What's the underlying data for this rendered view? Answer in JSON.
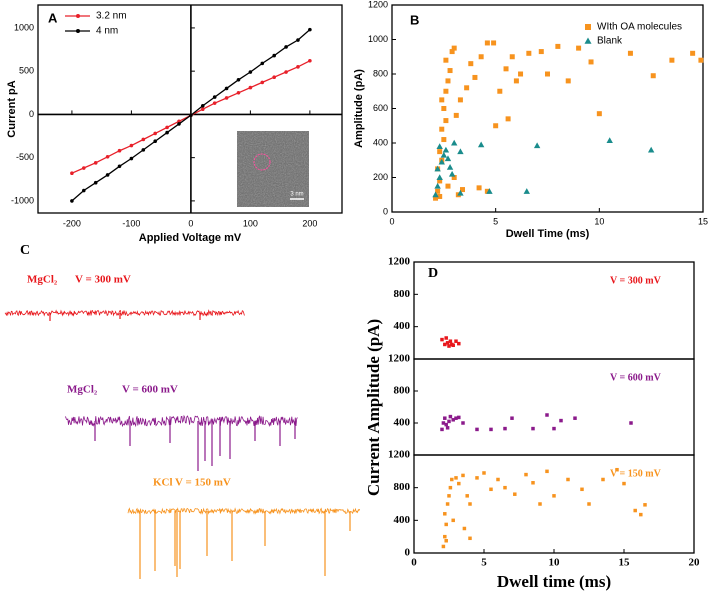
{
  "chart_data": [
    {
      "type": "line",
      "label": "A",
      "x_label": "Applied Voltage mV",
      "y_label": "Current pA",
      "inset_label": "3 nm",
      "xlim": [
        -257,
        254
      ],
      "ylim": [
        -1140,
        1265
      ],
      "xticks": [
        -200,
        -100,
        0,
        100,
        200
      ],
      "yticks": [
        -1000,
        -500,
        0,
        500,
        1000
      ],
      "legend": "upper left",
      "series": [
        {
          "name": "3.2 nm",
          "color": "#e8202a",
          "x": [
            -200,
            -180,
            -160,
            -140,
            -120,
            -100,
            -80,
            -60,
            -40,
            -20,
            0,
            20,
            40,
            60,
            80,
            100,
            120,
            140,
            160,
            180,
            200
          ],
          "y": [
            -680,
            -620,
            -560,
            -490,
            -420,
            -360,
            -290,
            -220,
            -150,
            -80,
            -10,
            60,
            130,
            190,
            250,
            310,
            370,
            430,
            490,
            550,
            620
          ]
        },
        {
          "name": "4 nm",
          "color": "#000000",
          "x": [
            -200,
            -180,
            -160,
            -140,
            -120,
            -100,
            -80,
            -60,
            -40,
            -20,
            0,
            20,
            40,
            60,
            80,
            100,
            120,
            140,
            160,
            180,
            200
          ],
          "y": [
            -1000,
            -880,
            -790,
            -700,
            -600,
            -510,
            -410,
            -310,
            -210,
            -110,
            -10,
            100,
            200,
            300,
            400,
            490,
            590,
            680,
            780,
            860,
            980
          ]
        }
      ]
    },
    {
      "type": "scatter",
      "label": "B",
      "x_label": "Dwell Time (ms)",
      "y_label": "Amplitude (pA)",
      "xlim": [
        0,
        15
      ],
      "ylim": [
        0,
        1200
      ],
      "xticks": [
        0,
        5,
        10,
        15
      ],
      "yticks": [
        0,
        200,
        400,
        600,
        800,
        1000,
        1200
      ],
      "legend": "upper right",
      "series": [
        {
          "name": "WIth OA molecules",
          "color": "#f7931e",
          "marker": "square",
          "x": [
            2.1,
            2.2,
            2.3,
            2.2,
            2.4,
            2.3,
            2.5,
            2.4,
            2.6,
            2.5,
            2.4,
            2.6,
            2.7,
            2.8,
            2.6,
            2.9,
            3.0,
            2.3,
            2.7,
            3.0,
            3.2,
            3.4,
            3.1,
            3.3,
            3.6,
            3.8,
            4.0,
            4.3,
            4.6,
            4.9,
            5.2,
            5.5,
            5.8,
            6.0,
            6.2,
            6.6,
            7.2,
            7.5,
            8.0,
            8.5,
            9.0,
            9.6,
            10.0,
            11.5,
            12.6,
            13.5,
            14.5,
            14.9,
            5.0,
            5.6,
            4.2,
            4.6
          ],
          "y": [
            80,
            120,
            180,
            250,
            300,
            350,
            420,
            480,
            530,
            600,
            650,
            700,
            760,
            820,
            880,
            930,
            950,
            90,
            150,
            200,
            100,
            130,
            560,
            650,
            720,
            860,
            780,
            900,
            980,
            980,
            700,
            830,
            900,
            760,
            800,
            920,
            930,
            800,
            960,
            760,
            950,
            870,
            570,
            920,
            790,
            880,
            920,
            880,
            500,
            540,
            140,
            120
          ]
        },
        {
          "name": "Blank",
          "color": "#1a8c8c",
          "marker": "triangle",
          "x": [
            2.1,
            2.2,
            2.3,
            2.2,
            2.4,
            2.5,
            2.6,
            2.3,
            2.7,
            2.8,
            2.9,
            3.0,
            3.3,
            4.3,
            3.3,
            4.7,
            6.5,
            7.0,
            10.5,
            12.5
          ],
          "y": [
            100,
            150,
            200,
            250,
            290,
            330,
            360,
            380,
            310,
            260,
            220,
            400,
            350,
            390,
            110,
            120,
            120,
            385,
            415,
            360
          ]
        }
      ]
    },
    {
      "type": "trace",
      "label": "C",
      "traces": [
        {
          "name": "MgCl₂",
          "annotation": "V = 300 mV",
          "color": "#e8161b"
        },
        {
          "name": "MgCl₂",
          "annotation": "V = 600 mV",
          "color": "#8b1a8b"
        },
        {
          "name": "KCl",
          "annotation": "V = 150 mV",
          "color": "#f7931e"
        }
      ]
    },
    {
      "type": "scatter-panels",
      "label": "D",
      "x_label": "Dwell time (ms)",
      "y_label": "Current Amplitude (pA)",
      "xlim": [
        0,
        20
      ],
      "xticks": [
        0,
        5,
        10,
        15,
        20
      ],
      "panels": [
        {
          "annotation": "V = 300 mV",
          "color": "#e8161b",
          "ylim": [
            0,
            1200
          ],
          "yticks": [
            400,
            800,
            1200
          ],
          "x": [
            2.0,
            2.2,
            2.4,
            2.5,
            2.6,
            2.7,
            2.8,
            3.0,
            2.3,
            3.2
          ],
          "y": [
            240,
            180,
            200,
            160,
            220,
            180,
            170,
            220,
            260,
            190
          ]
        },
        {
          "annotation": "V = 600 mV",
          "color": "#8b1a8b",
          "ylim": [
            0,
            1200
          ],
          "yticks": [
            400,
            800,
            1200
          ],
          "x": [
            2.0,
            2.1,
            2.2,
            2.3,
            2.4,
            2.5,
            2.6,
            2.8,
            3.0,
            3.2,
            3.5,
            4.5,
            5.5,
            6.5,
            7.0,
            8.5,
            9.5,
            10.5,
            11.5,
            15.5,
            10.0
          ],
          "y": [
            320,
            400,
            460,
            380,
            340,
            420,
            480,
            440,
            460,
            470,
            400,
            320,
            320,
            330,
            460,
            330,
            500,
            430,
            460,
            400,
            330
          ]
        },
        {
          "annotation": "V = 150 mV",
          "color": "#f7931e",
          "ylim": [
            0,
            1200
          ],
          "yticks": [
            0,
            400,
            800,
            1200
          ],
          "x": [
            2.1,
            2.2,
            2.3,
            2.2,
            2.4,
            2.5,
            2.6,
            2.7,
            2.3,
            2.8,
            3.0,
            3.2,
            3.5,
            3.8,
            4.0,
            4.5,
            5.0,
            5.5,
            6.0,
            6.5,
            7.2,
            8.0,
            8.5,
            9.5,
            10.0,
            11.0,
            12.0,
            12.5,
            13.5,
            14.5,
            15.0,
            15.8,
            16.2,
            16.5,
            9.0,
            4.0,
            3.6
          ],
          "y": [
            80,
            200,
            350,
            480,
            600,
            700,
            800,
            900,
            150,
            400,
            920,
            850,
            950,
            700,
            600,
            920,
            980,
            780,
            900,
            800,
            720,
            960,
            860,
            1000,
            700,
            900,
            780,
            600,
            900,
            1020,
            850,
            520,
            470,
            590,
            600,
            180,
            300
          ]
        }
      ]
    }
  ]
}
